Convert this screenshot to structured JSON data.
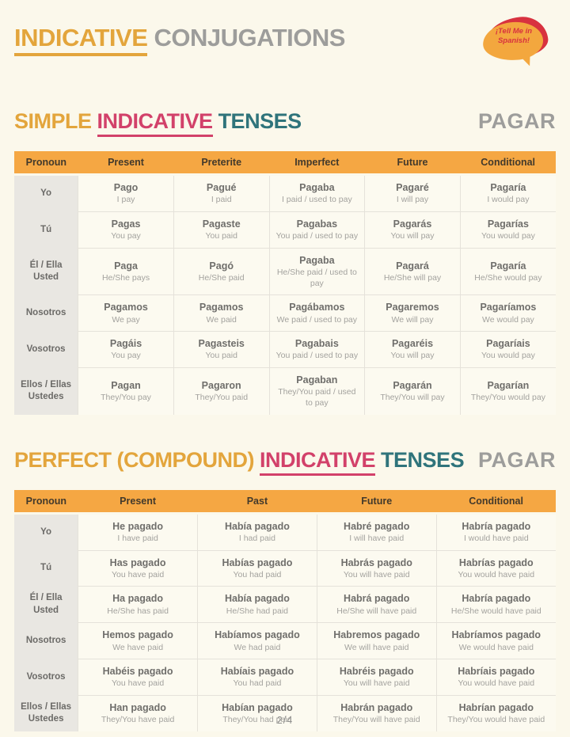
{
  "colors": {
    "page_bg": "#FBF8EB",
    "gold": "#E3A53C",
    "pink": "#D2416A",
    "teal": "#2F747B",
    "gray": "#9D9D9B",
    "header_bg": "#F5A743",
    "header_text": "#42392B",
    "cell_main": "#6F6E6B",
    "cell_sub": "#A3A29E",
    "pronoun_bg": "#E9E7E2",
    "pronoun_text": "#6B6A67",
    "cell_bg": "#FCFAF0",
    "border": "#E5E2DA",
    "logo_red": "#D8323F",
    "logo_yellow": "#F3A73E",
    "footer_text": "#8F8F8D"
  },
  "header": {
    "title_parts": [
      {
        "text": "INDICATIVE",
        "color": "gold",
        "underline": true
      },
      {
        "text": "CONJUGATIONS",
        "color": "gray",
        "underline": false
      }
    ],
    "logo": {
      "line1": "¡Tell Me in",
      "line2": "Spanish!"
    }
  },
  "sections": [
    {
      "heading_parts": [
        {
          "text": "SIMPLE",
          "color": "gold",
          "underline": false
        },
        {
          "text": "INDICATIVE",
          "color": "pink",
          "underline": true
        },
        {
          "text": "TENSES",
          "color": "teal",
          "underline": false
        }
      ],
      "verb": "PAGAR",
      "columns": [
        "Pronoun",
        "Present",
        "Preterite",
        "Imperfect",
        "Future",
        "Conditional"
      ],
      "rows": [
        {
          "pronoun": [
            "Yo"
          ],
          "cells": [
            {
              "main": "Pago",
              "sub": "I pay"
            },
            {
              "main": "Pagué",
              "sub": "I paid"
            },
            {
              "main": "Pagaba",
              "sub": "I paid / used to pay"
            },
            {
              "main": "Pagaré",
              "sub": "I will pay"
            },
            {
              "main": "Pagaría",
              "sub": "I would pay"
            }
          ]
        },
        {
          "pronoun": [
            "Tú"
          ],
          "cells": [
            {
              "main": "Pagas",
              "sub": "You pay"
            },
            {
              "main": "Pagaste",
              "sub": "You paid"
            },
            {
              "main": "Pagabas",
              "sub": "You paid / used to pay"
            },
            {
              "main": "Pagarás",
              "sub": "You will pay"
            },
            {
              "main": "Pagarías",
              "sub": "You would pay"
            }
          ]
        },
        {
          "pronoun": [
            "Él / Ella",
            "Usted"
          ],
          "cells": [
            {
              "main": "Paga",
              "sub": "He/She pays"
            },
            {
              "main": "Pagó",
              "sub": "He/She paid"
            },
            {
              "main": "Pagaba",
              "sub": "He/She paid / used to pay"
            },
            {
              "main": "Pagará",
              "sub": "He/She will pay"
            },
            {
              "main": "Pagaría",
              "sub": "He/She would pay"
            }
          ]
        },
        {
          "pronoun": [
            "Nosotros"
          ],
          "cells": [
            {
              "main": "Pagamos",
              "sub": "We pay"
            },
            {
              "main": "Pagamos",
              "sub": "We paid"
            },
            {
              "main": "Pagábamos",
              "sub": "We paid / used to pay"
            },
            {
              "main": "Pagaremos",
              "sub": "We will pay"
            },
            {
              "main": "Pagaríamos",
              "sub": "We would pay"
            }
          ]
        },
        {
          "pronoun": [
            "Vosotros"
          ],
          "cells": [
            {
              "main": "Pagáis",
              "sub": "You pay"
            },
            {
              "main": "Pagasteis",
              "sub": "You paid"
            },
            {
              "main": "Pagabais",
              "sub": "You paid / used to pay"
            },
            {
              "main": "Pagaréis",
              "sub": "You will pay"
            },
            {
              "main": "Pagaríais",
              "sub": "You would pay"
            }
          ]
        },
        {
          "pronoun": [
            "Ellos / Ellas",
            "Ustedes"
          ],
          "cells": [
            {
              "main": "Pagan",
              "sub": "They/You pay"
            },
            {
              "main": "Pagaron",
              "sub": "They/You paid"
            },
            {
              "main": "Pagaban",
              "sub": "They/You paid / used to pay"
            },
            {
              "main": "Pagarán",
              "sub": "They/You will pay"
            },
            {
              "main": "Pagarían",
              "sub": "They/You would pay"
            }
          ]
        }
      ]
    },
    {
      "heading_parts": [
        {
          "text": "PERFECT (COMPOUND)",
          "color": "gold",
          "underline": false
        },
        {
          "text": "INDICATIVE",
          "color": "pink",
          "underline": true
        },
        {
          "text": "TENSES",
          "color": "teal",
          "underline": false
        }
      ],
      "verb": "PAGAR",
      "columns": [
        "Pronoun",
        "Present",
        "Past",
        "Future",
        "Conditional"
      ],
      "rows": [
        {
          "pronoun": [
            "Yo"
          ],
          "cells": [
            {
              "main": "He pagado",
              "sub": "I have paid"
            },
            {
              "main": "Había pagado",
              "sub": "I had paid"
            },
            {
              "main": "Habré pagado",
              "sub": "I will have paid"
            },
            {
              "main": "Habría pagado",
              "sub": "I would have paid"
            }
          ]
        },
        {
          "pronoun": [
            "Tú"
          ],
          "cells": [
            {
              "main": "Has pagado",
              "sub": "You have paid"
            },
            {
              "main": "Habías pagado",
              "sub": "You had paid"
            },
            {
              "main": "Habrás pagado",
              "sub": "You will have paid"
            },
            {
              "main": "Habrías pagado",
              "sub": "You would have paid"
            }
          ]
        },
        {
          "pronoun": [
            "Él / Ella",
            "Usted"
          ],
          "cells": [
            {
              "main": "Ha pagado",
              "sub": "He/She has paid"
            },
            {
              "main": "Había pagado",
              "sub": "He/She had paid"
            },
            {
              "main": "Habrá pagado",
              "sub": "He/She will have paid"
            },
            {
              "main": "Habría pagado",
              "sub": "He/She would have paid"
            }
          ]
        },
        {
          "pronoun": [
            "Nosotros"
          ],
          "cells": [
            {
              "main": "Hemos pagado",
              "sub": "We have paid"
            },
            {
              "main": "Habíamos pagado",
              "sub": "We had paid"
            },
            {
              "main": "Habremos pagado",
              "sub": "We will have paid"
            },
            {
              "main": "Habríamos pagado",
              "sub": "We would have paid"
            }
          ]
        },
        {
          "pronoun": [
            "Vosotros"
          ],
          "cells": [
            {
              "main": "Habéis pagado",
              "sub": "You have paid"
            },
            {
              "main": "Habíais pagado",
              "sub": "You had paid"
            },
            {
              "main": "Habréis pagado",
              "sub": "You will have paid"
            },
            {
              "main": "Habríais pagado",
              "sub": "You would have paid"
            }
          ]
        },
        {
          "pronoun": [
            "Ellos / Ellas",
            "Ustedes"
          ],
          "cells": [
            {
              "main": "Han pagado",
              "sub": "They/You have paid"
            },
            {
              "main": "Habían pagado",
              "sub": "They/You had paid"
            },
            {
              "main": "Habrán pagado",
              "sub": "They/You will have paid"
            },
            {
              "main": "Habrían pagado",
              "sub": "They/You would have paid"
            }
          ]
        }
      ]
    }
  ],
  "footer": {
    "page_number": "2/4"
  }
}
